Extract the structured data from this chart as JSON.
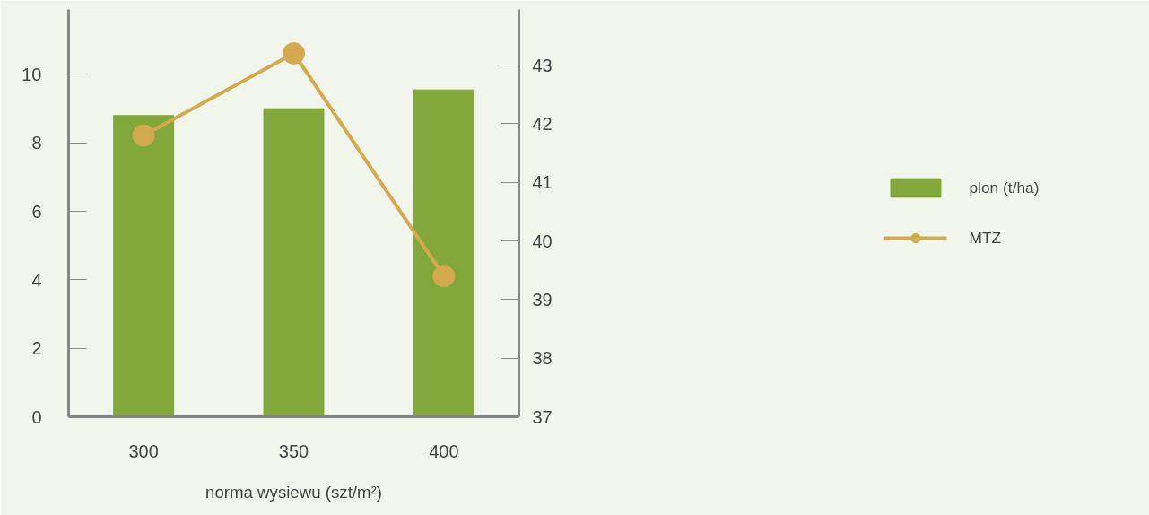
{
  "chart_data": {
    "type": "bar",
    "xlabel": "norma wysiewu (szt/m²)",
    "categories": [
      "300",
      "350",
      "400"
    ],
    "series": [
      {
        "name": "plon (t/ha)",
        "color": "#82a73a",
        "values": [
          8.8,
          9.0,
          9.55
        ]
      },
      {
        "name": "MTZ",
        "type": "line",
        "axis": "y2",
        "color": "#d4aa4f",
        "values": [
          41.8,
          43.2,
          39.4
        ]
      }
    ],
    "ylim": [
      0,
      11.9
    ],
    "yticks": [
      0,
      2,
      4,
      6,
      8,
      10
    ],
    "y2lim": [
      37,
      43.95
    ],
    "y2ticks": [
      37,
      38,
      39,
      40,
      41,
      42,
      43
    ],
    "legend": "right",
    "marker": "circle"
  }
}
